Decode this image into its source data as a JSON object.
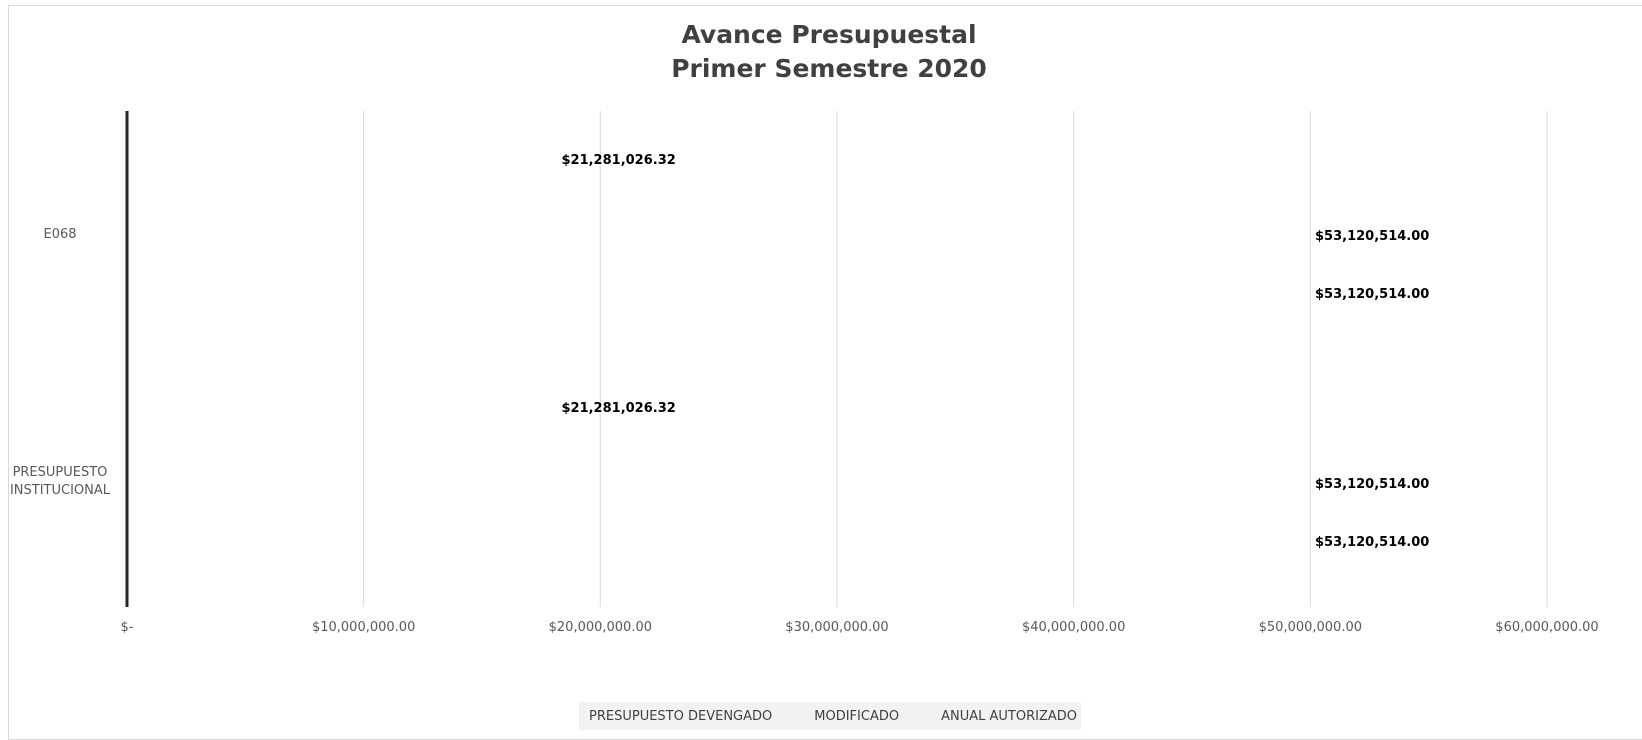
{
  "chart_data": {
    "type": "bar",
    "orientation": "horizontal",
    "title_lines": [
      "Avance Presupuestal",
      "Primer Semestre 2020"
    ],
    "categories": [
      "E068",
      "PRESUPUESTO INSTITUCIONAL"
    ],
    "series": [
      {
        "name": "PRESUPUESTO DEVENGADO",
        "values": [
          21281026.32,
          21281026.32
        ],
        "labels": [
          "$21,281,026.32",
          "$21,281,026.32"
        ]
      },
      {
        "name": "MODIFICADO",
        "values": [
          53120514.0,
          53120514.0
        ],
        "labels": [
          "$53,120,514.00",
          "$53,120,514.00"
        ]
      },
      {
        "name": "ANUAL AUTORIZADO",
        "values": [
          53120514.0,
          53120514.0
        ],
        "labels": [
          "$53,120,514.00",
          "$53,120,514.00"
        ]
      }
    ],
    "x_ticks": [
      0,
      10000000,
      20000000,
      30000000,
      40000000,
      50000000,
      60000000
    ],
    "x_tick_labels": [
      "$-",
      "$10,000,000.00",
      "$20,000,000.00",
      "$30,000,000.00",
      "$40,000,000.00",
      "$50,000,000.00",
      "$60,000,000.00"
    ],
    "xlim": [
      0,
      60000000
    ],
    "grid": true,
    "legend_position": "bottom",
    "colors": {
      "title": "#404040",
      "tick_label": "#595959",
      "data_label": "#000000",
      "grid": "#d9d9d9",
      "axis": "#262626"
    }
  }
}
